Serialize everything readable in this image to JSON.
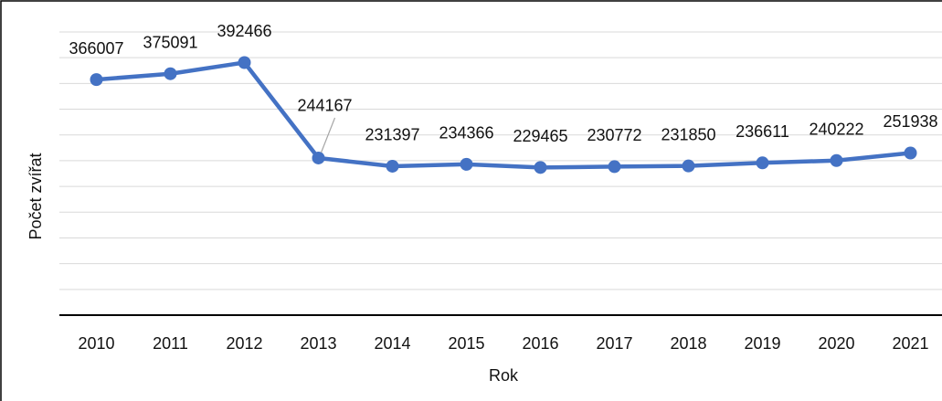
{
  "chart_data": {
    "type": "line",
    "x_label": "Rok",
    "y_label": "Počet zvířat",
    "categories": [
      "2010",
      "2011",
      "2012",
      "2013",
      "2014",
      "2015",
      "2016",
      "2017",
      "2018",
      "2019",
      "2020",
      "2021"
    ],
    "series": [
      {
        "name": "Počet zvířat",
        "color": "#4472c4",
        "values": [
          366007,
          375091,
          392466,
          244167,
          231397,
          234366,
          229465,
          230772,
          231850,
          236611,
          240222,
          251938
        ]
      }
    ],
    "ylim": [
      0,
      440000
    ],
    "yticks": [
      0,
      40000,
      80000,
      120000,
      160000,
      200000,
      240000,
      280000,
      320000,
      360000,
      400000,
      440000
    ],
    "grid": true
  }
}
